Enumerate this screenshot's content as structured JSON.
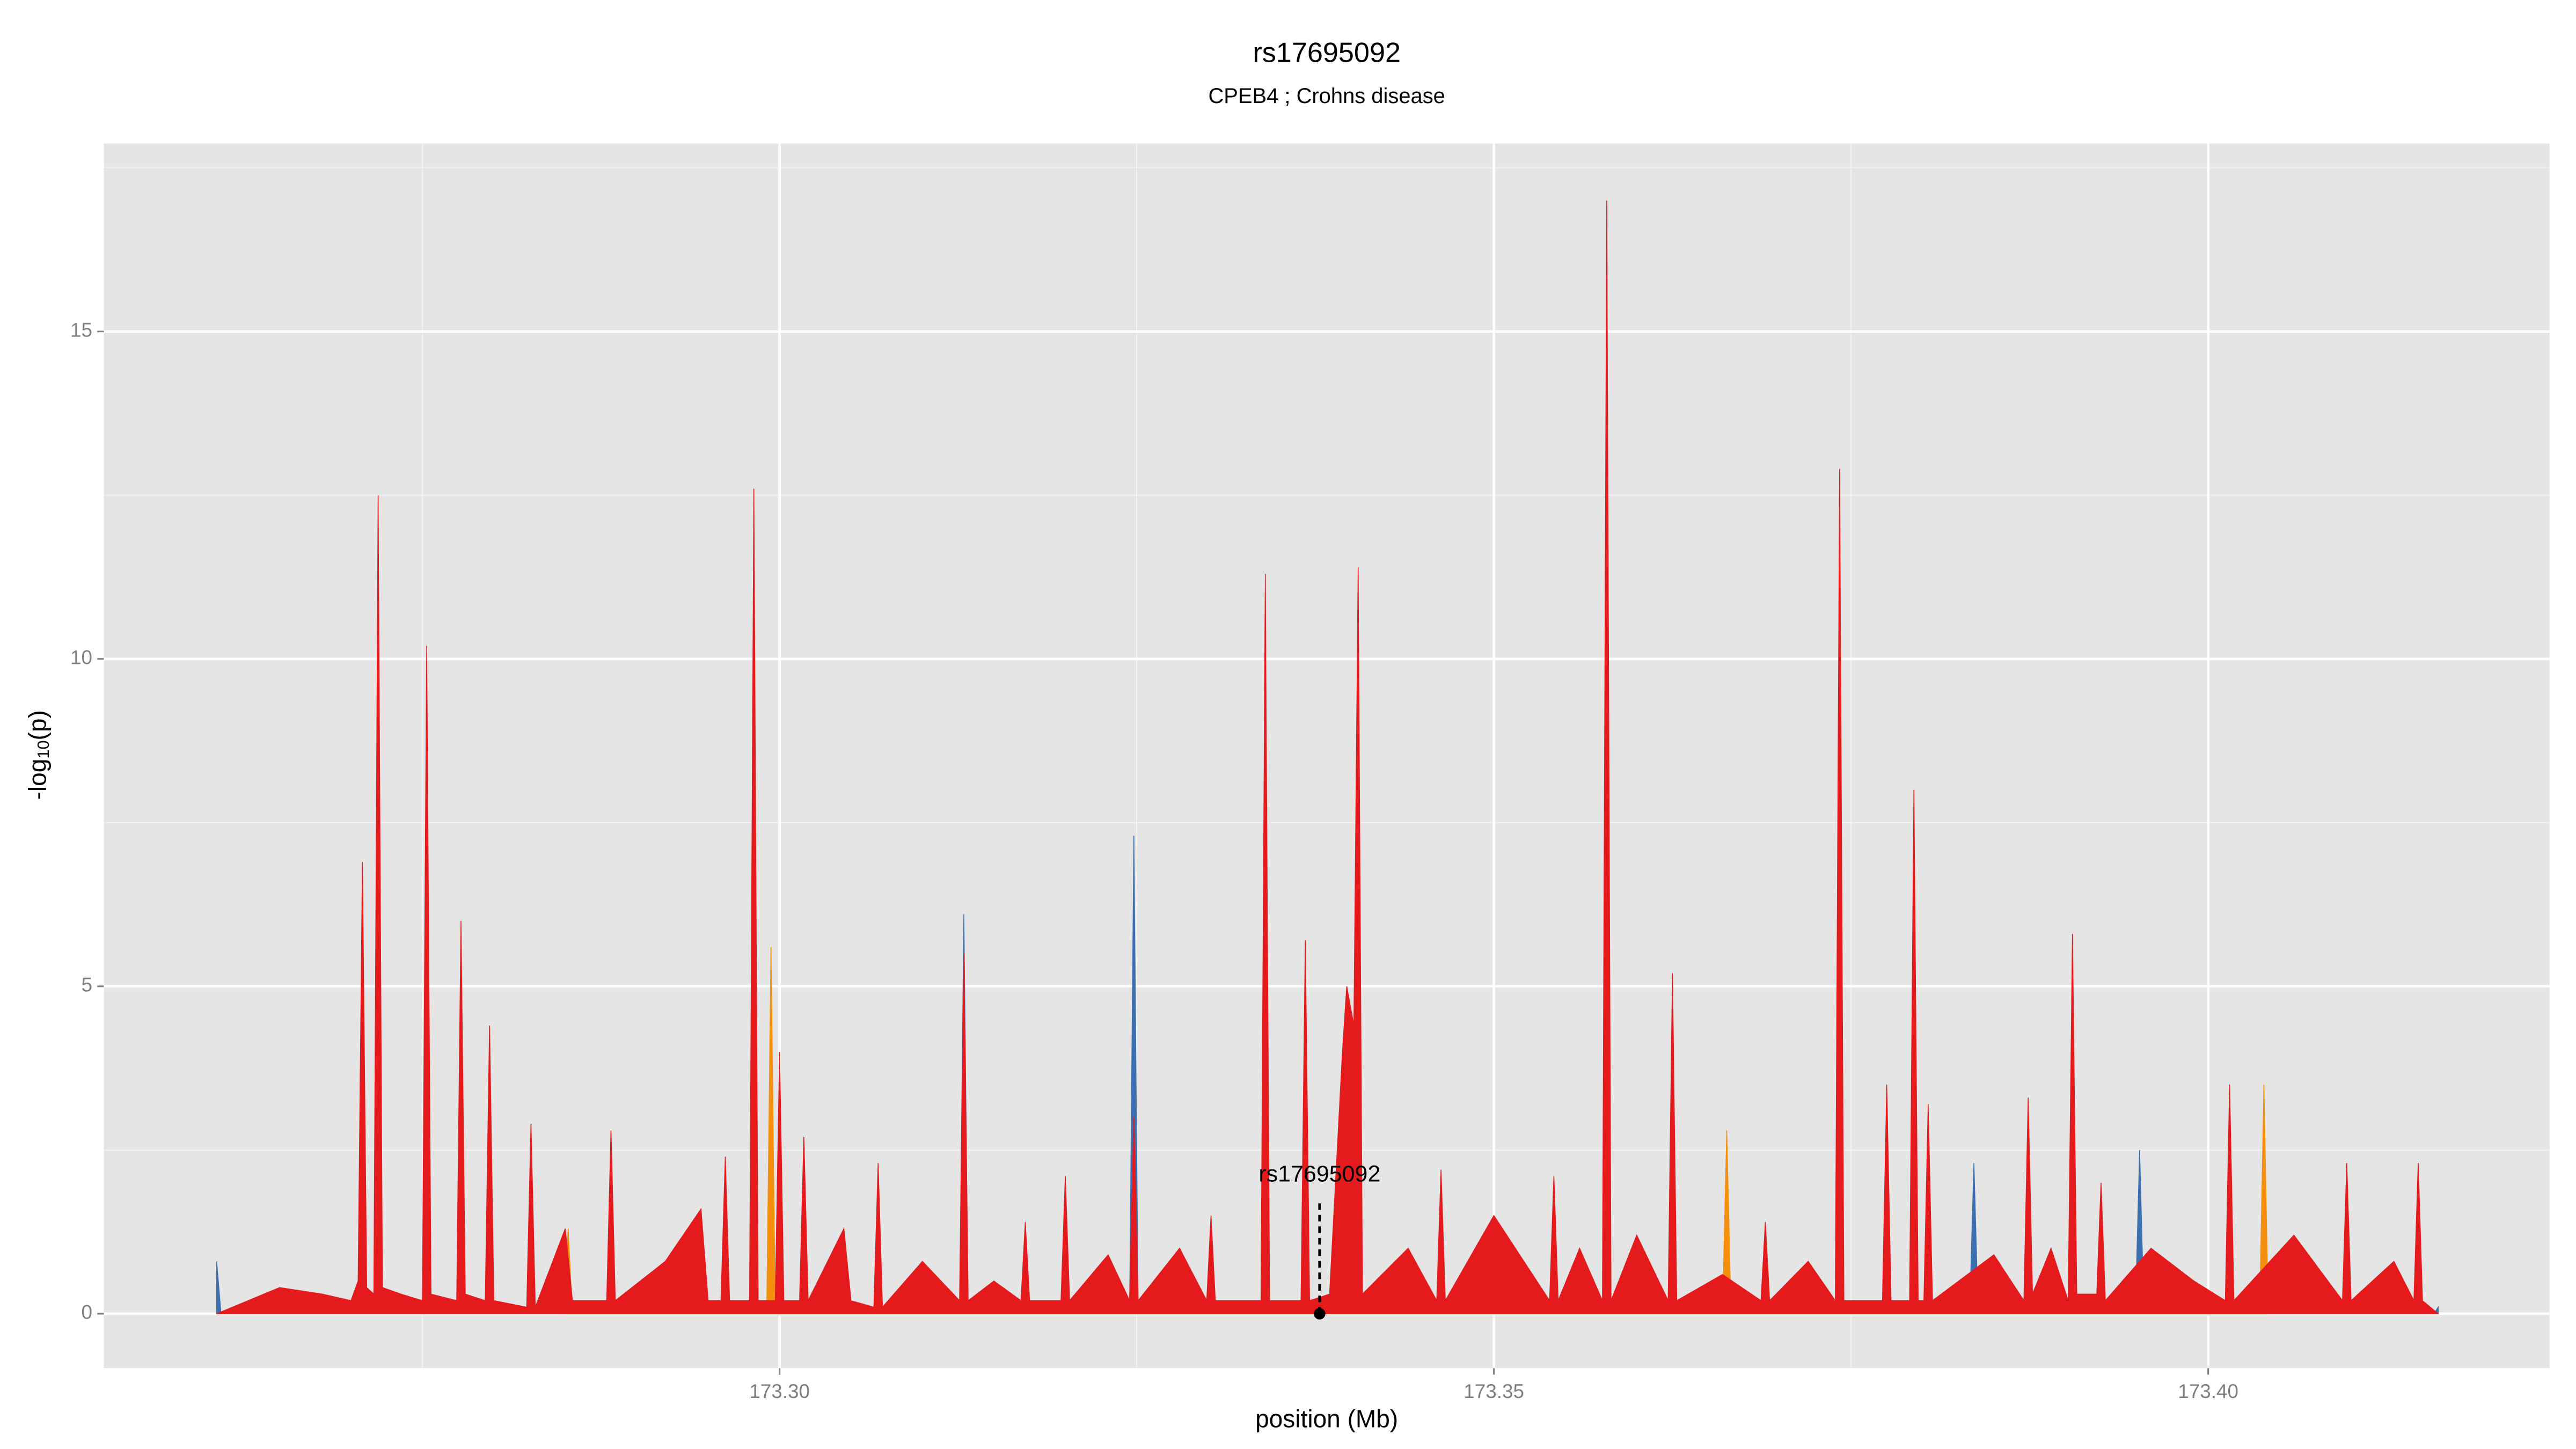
{
  "chart_data": {
    "type": "area",
    "title": "rs17695092",
    "subtitle": "CPEB4 ; Crohns disease",
    "xlabel": "position (Mb)",
    "ylabel": {
      "main": "-log",
      "sub": "10",
      "end": "(p)"
    },
    "xlim": [
      173.2527,
      173.4239
    ],
    "ylim": [
      -0.83,
      17.87
    ],
    "xticks": [
      {
        "value": 173.3,
        "label": "173.30"
      },
      {
        "value": 173.35,
        "label": "173.35"
      },
      {
        "value": 173.4,
        "label": "173.40"
      }
    ],
    "xminor": [
      173.275,
      173.325,
      173.375
    ],
    "yticks": [
      0,
      5,
      10,
      15
    ],
    "yminor": [
      2.5,
      7.5,
      12.5,
      17.5
    ],
    "grid": true,
    "series": [
      {
        "color": "#3b6fb0",
        "x": [
          173.2606,
          173.2609,
          173.3126,
          173.3129,
          173.3132,
          173.3245,
          173.3248,
          173.3251,
          173.3833,
          173.3836,
          173.3839,
          173.3949,
          173.3952,
          173.3955,
          173.4158,
          173.4161
        ],
        "values": [
          0.8,
          0,
          0,
          6.1,
          0,
          0,
          7.3,
          0,
          0,
          2.3,
          0,
          0,
          2.5,
          0,
          0,
          0.1
        ]
      },
      {
        "color": "#f5900f",
        "x": [
          173.2849,
          173.2852,
          173.2855,
          173.2991,
          173.2994,
          173.2997,
          173.366,
          173.3663,
          173.3666,
          173.4036,
          173.4039,
          173.4042
        ],
        "values": [
          0,
          1.3,
          0,
          0,
          5.6,
          0,
          0,
          2.8,
          0,
          0,
          3.5,
          0
        ]
      },
      {
        "color": "#e41a1c",
        "x": [
          173.2606,
          173.265,
          173.268,
          173.27,
          173.2705,
          173.2708,
          173.2711,
          173.2716,
          173.2719,
          173.2722,
          173.2735,
          173.275,
          173.2753,
          173.2756,
          173.2774,
          173.2777,
          173.278,
          173.2794,
          173.2797,
          173.28,
          173.2823,
          173.2826,
          173.2829,
          173.285,
          173.2855,
          173.2879,
          173.2882,
          173.2885,
          173.292,
          173.2945,
          173.295,
          173.2959,
          173.2962,
          173.2965,
          173.2979,
          173.2982,
          173.2985,
          173.2997,
          173.3,
          173.3003,
          173.3014,
          173.3017,
          173.302,
          173.3045,
          173.305,
          173.3066,
          173.3069,
          173.3072,
          173.31,
          173.3126,
          173.3129,
          173.3132,
          173.315,
          173.3169,
          173.3172,
          173.3175,
          173.3197,
          173.32,
          173.3203,
          173.323,
          173.3245,
          173.3248,
          173.3251,
          173.328,
          173.3299,
          173.3302,
          173.3305,
          173.3337,
          173.334,
          173.3343,
          173.3365,
          173.3368,
          173.3371,
          173.3385,
          173.3394,
          173.3397,
          173.3402,
          173.3405,
          173.3408,
          173.344,
          173.346,
          173.3463,
          173.3466,
          173.35,
          173.3539,
          173.3542,
          173.3545,
          173.356,
          173.3576,
          173.3579,
          173.3582,
          173.36,
          173.3622,
          173.3625,
          173.3628,
          173.366,
          173.3687,
          173.369,
          173.3693,
          173.372,
          173.3739,
          173.3742,
          173.3745,
          173.3772,
          173.3775,
          173.3778,
          173.3791,
          173.3794,
          173.3797,
          173.3801,
          173.3804,
          173.3807,
          173.385,
          173.3871,
          173.3874,
          173.3877,
          173.389,
          173.3902,
          173.3905,
          173.3908,
          173.3922,
          173.3925,
          173.3928,
          173.396,
          173.399,
          173.4012,
          173.4015,
          173.4018,
          173.406,
          173.4094,
          173.4097,
          173.41,
          173.413,
          173.4144,
          173.4147,
          173.415,
          173.4161
        ],
        "values": [
          0,
          0.4,
          0.3,
          0.2,
          0.5,
          6.9,
          0.4,
          0.3,
          12.5,
          0.4,
          0.3,
          0.2,
          10.2,
          0.3,
          0.2,
          6.0,
          0.3,
          0.2,
          4.4,
          0.2,
          0.1,
          2.9,
          0.1,
          1.3,
          0.2,
          0.2,
          2.8,
          0.2,
          0.8,
          1.6,
          0.2,
          0.2,
          2.4,
          0.2,
          0.2,
          12.6,
          0.2,
          0.2,
          4.0,
          0.2,
          0.2,
          2.7,
          0.2,
          1.3,
          0.2,
          0.1,
          2.3,
          0.1,
          0.8,
          0.2,
          5.5,
          0.2,
          0.5,
          0.2,
          1.4,
          0.2,
          0.2,
          2.1,
          0.2,
          0.9,
          0.2,
          3.0,
          0.2,
          1.0,
          0.2,
          1.5,
          0.2,
          0.2,
          11.3,
          0.2,
          0.2,
          5.7,
          0.2,
          0.3,
          4.0,
          5.0,
          4.4,
          11.4,
          0.3,
          1.0,
          0.2,
          2.2,
          0.2,
          1.5,
          0.2,
          2.1,
          0.2,
          1.0,
          0.2,
          17.0,
          0.2,
          1.2,
          0.2,
          5.2,
          0.2,
          0.6,
          0.2,
          1.4,
          0.2,
          0.8,
          0.2,
          12.9,
          0.2,
          0.2,
          3.5,
          0.2,
          0.2,
          8.0,
          0.2,
          0.2,
          3.2,
          0.2,
          0.9,
          0.2,
          3.3,
          0.3,
          1.0,
          0.2,
          5.8,
          0.3,
          0.3,
          2.0,
          0.2,
          1.0,
          0.5,
          0.2,
          3.5,
          0.2,
          1.2,
          0.2,
          2.3,
          0.2,
          0.8,
          0.2,
          2.3,
          0.2,
          0
        ]
      }
    ],
    "annotation": {
      "text": "rs17695092",
      "x": 173.3378,
      "y": 0
    }
  }
}
